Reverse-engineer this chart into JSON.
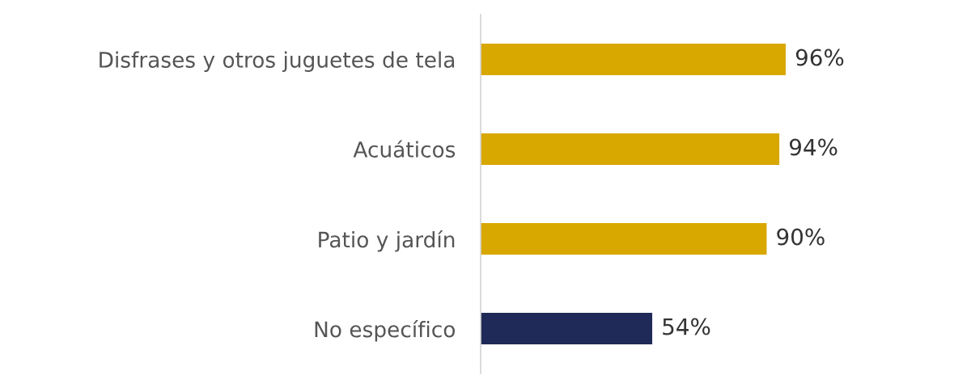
{
  "chart_data": {
    "type": "bar",
    "orientation": "horizontal",
    "tick_labels": "y",
    "categories": [
      "Disfrases y otros juguetes de tela",
      "Acuáticos",
      "Patio y jardín",
      "No específico"
    ],
    "values": [
      96,
      94,
      90,
      54
    ],
    "colors": [
      "#d8a700",
      "#d8a700",
      "#d8a700",
      "#1f2a58"
    ],
    "value_labels": [
      "96%",
      "94%",
      "90%",
      "54%"
    ]
  }
}
